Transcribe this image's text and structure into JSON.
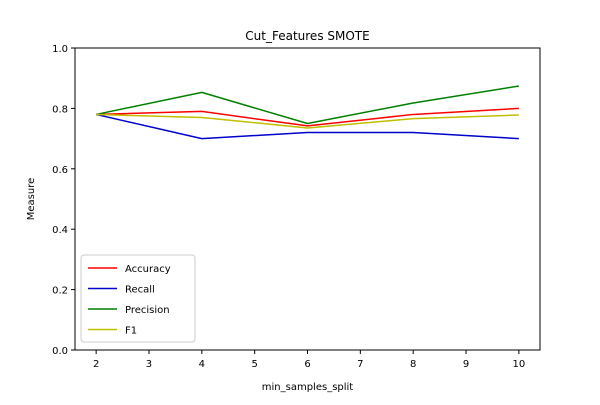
{
  "chart_data": {
    "type": "line",
    "title": "Cut_Features SMOTE",
    "xlabel": "min_samples_split",
    "ylabel": "Measure",
    "x": [
      2,
      4,
      6,
      8,
      10
    ],
    "xticks": [
      "2",
      "3",
      "4",
      "5",
      "6",
      "7",
      "8",
      "9",
      "10"
    ],
    "yticks": [
      "0.0",
      "0.2",
      "0.4",
      "0.6",
      "0.8",
      "1.0"
    ],
    "xlim": [
      1.6,
      10.4
    ],
    "ylim": [
      0.0,
      1.0
    ],
    "grid": false,
    "legend_position": "lower-left",
    "series": [
      {
        "name": "Accuracy",
        "color": "#ff0000",
        "values": [
          0.78,
          0.79,
          0.742,
          0.78,
          0.8
        ]
      },
      {
        "name": "Recall",
        "color": "#0000cc",
        "values": [
          0.78,
          0.7,
          0.72,
          0.72,
          0.7
        ]
      },
      {
        "name": "Precision",
        "color": "#008000",
        "values": [
          0.78,
          0.853,
          0.75,
          0.818,
          0.874
        ]
      },
      {
        "name": "F1",
        "color": "#bfbf00",
        "values": [
          0.78,
          0.77,
          0.735,
          0.766,
          0.778
        ]
      }
    ]
  }
}
